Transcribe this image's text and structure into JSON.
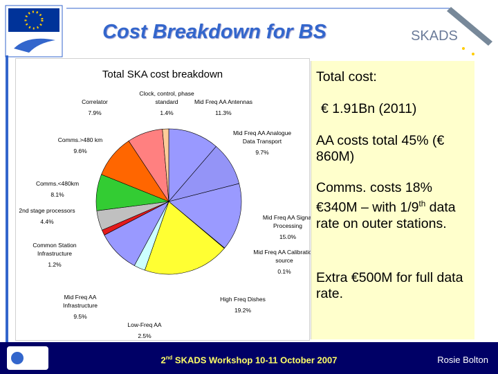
{
  "title": "Cost Breakdown for BS",
  "logo_text": "SKADS",
  "chart_data": {
    "type": "pie",
    "title": "Total SKA cost breakdown",
    "categories": [
      "Mid Freq AA Antennas",
      "Mid Freq AA Analogue Data Transport",
      "Mid Freq AA Signal Processing",
      "Mid Freq AA Calibration source",
      "High Freq Dishes",
      "Low-Freq AA",
      "Mid Freq AA Infrastructure",
      "Common Station Infrastructure",
      "2nd stage processors",
      "Comms.<480km",
      "Comms.>480 km",
      "Correlator",
      "Clock, control, phase standard"
    ],
    "values": [
      11.3,
      9.7,
      15.0,
      0.1,
      19.2,
      2.5,
      9.5,
      1.2,
      4.4,
      8.1,
      9.6,
      7.9,
      1.4
    ],
    "value_labels": [
      "11.3%",
      "9.7%",
      "15.0%",
      "0.1%",
      "19.2%",
      "2.5%",
      "9.5%",
      "1.2%",
      "4.4%",
      "8.1%",
      "9.6%",
      "7.9%",
      "1.4%"
    ],
    "colors": [
      "#9999ff",
      "#9494f7",
      "#9a9aff",
      "#6666cc",
      "#ffff33",
      "#ccffff",
      "#9999ff",
      "#e31a1c",
      "#c0c0c0",
      "#33cc33",
      "#ff6600",
      "#ff8080",
      "#ffcc99"
    ]
  },
  "panel": {
    "total_label": "Total cost:",
    "total_value": "€ 1.91Bn (2011)",
    "aa": "AA costs total 45% (€ 860M)",
    "comms": [
      "Comms. costs 18% €340M – with 1/9",
      "th",
      " data rate on outer stations."
    ],
    "extra": "Extra €500M for full data rate."
  },
  "footer": {
    "event": [
      "2",
      "nd",
      " SKADS Workshop  10-11 October 2007"
    ],
    "author": "Rosie Bolton"
  }
}
